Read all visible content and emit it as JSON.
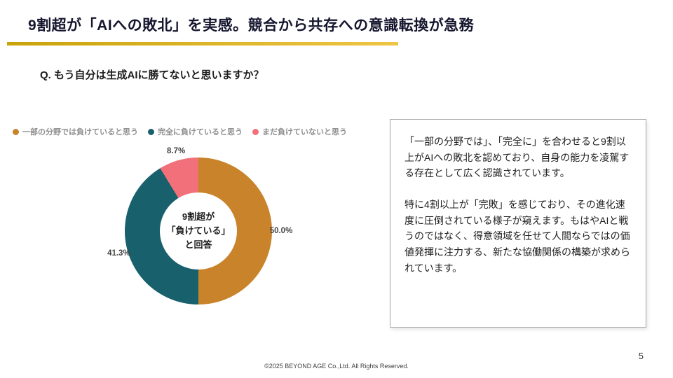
{
  "slide": {
    "title": "9割超が「AIへの敗北」を実感。競合から共存への意識転換が急務",
    "question": "Q. もう自分は生成AIに勝てないと思いますか？",
    "footer": "©2025 BEYOND AGE Co.,Ltd. All Rights Reserved.",
    "page_number": "5",
    "accent_color": "#d9a70d"
  },
  "chart_data": {
    "type": "pie",
    "donut": true,
    "legend_position": "top",
    "labels": [
      "一部の分野では負けていると思う",
      "完全に負けていると思う",
      "まだ負けていないと思う"
    ],
    "values": [
      50.0,
      41.3,
      8.7
    ],
    "value_labels": [
      "50.0%",
      "41.3%",
      "8.7%"
    ],
    "colors": [
      "#c8832b",
      "#17606c",
      "#f1707a"
    ],
    "center_text": [
      "9割超が",
      "「負けている」",
      "と回答"
    ]
  },
  "commentary": {
    "paragraph1": "「一部の分野では」、「完全に」を合わせると9割以上がAIへの敗北を認めており、自身の能力を凌駕する存在として広く認識されています。",
    "paragraph2": "特に4割以上が「完敗」を感じており、その進化速度に圧倒されている様子が窺えます。もはやAIと戦うのではなく、得意領域を任せて人間ならではの価値発揮に注力する、新たな協働関係の構築が求められています。"
  }
}
